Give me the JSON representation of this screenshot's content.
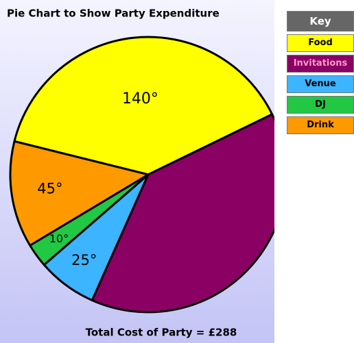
{
  "chart_data": {
    "type": "pie",
    "title": "Pie Chart to Show Party Expenditure",
    "legend_title": "Key",
    "footer": "Total Cost of Party = £288",
    "categories": [
      "Food",
      "Invitations",
      "Venue",
      "DJ",
      "Drink"
    ],
    "values": [
      140,
      140,
      25,
      10,
      45
    ],
    "value_labels": [
      "140°",
      null,
      "25°",
      "10°",
      "45°"
    ],
    "colors": [
      "#ffff00",
      "#8b0063",
      "#3cb4ff",
      "#22c744",
      "#ff9900"
    ]
  }
}
